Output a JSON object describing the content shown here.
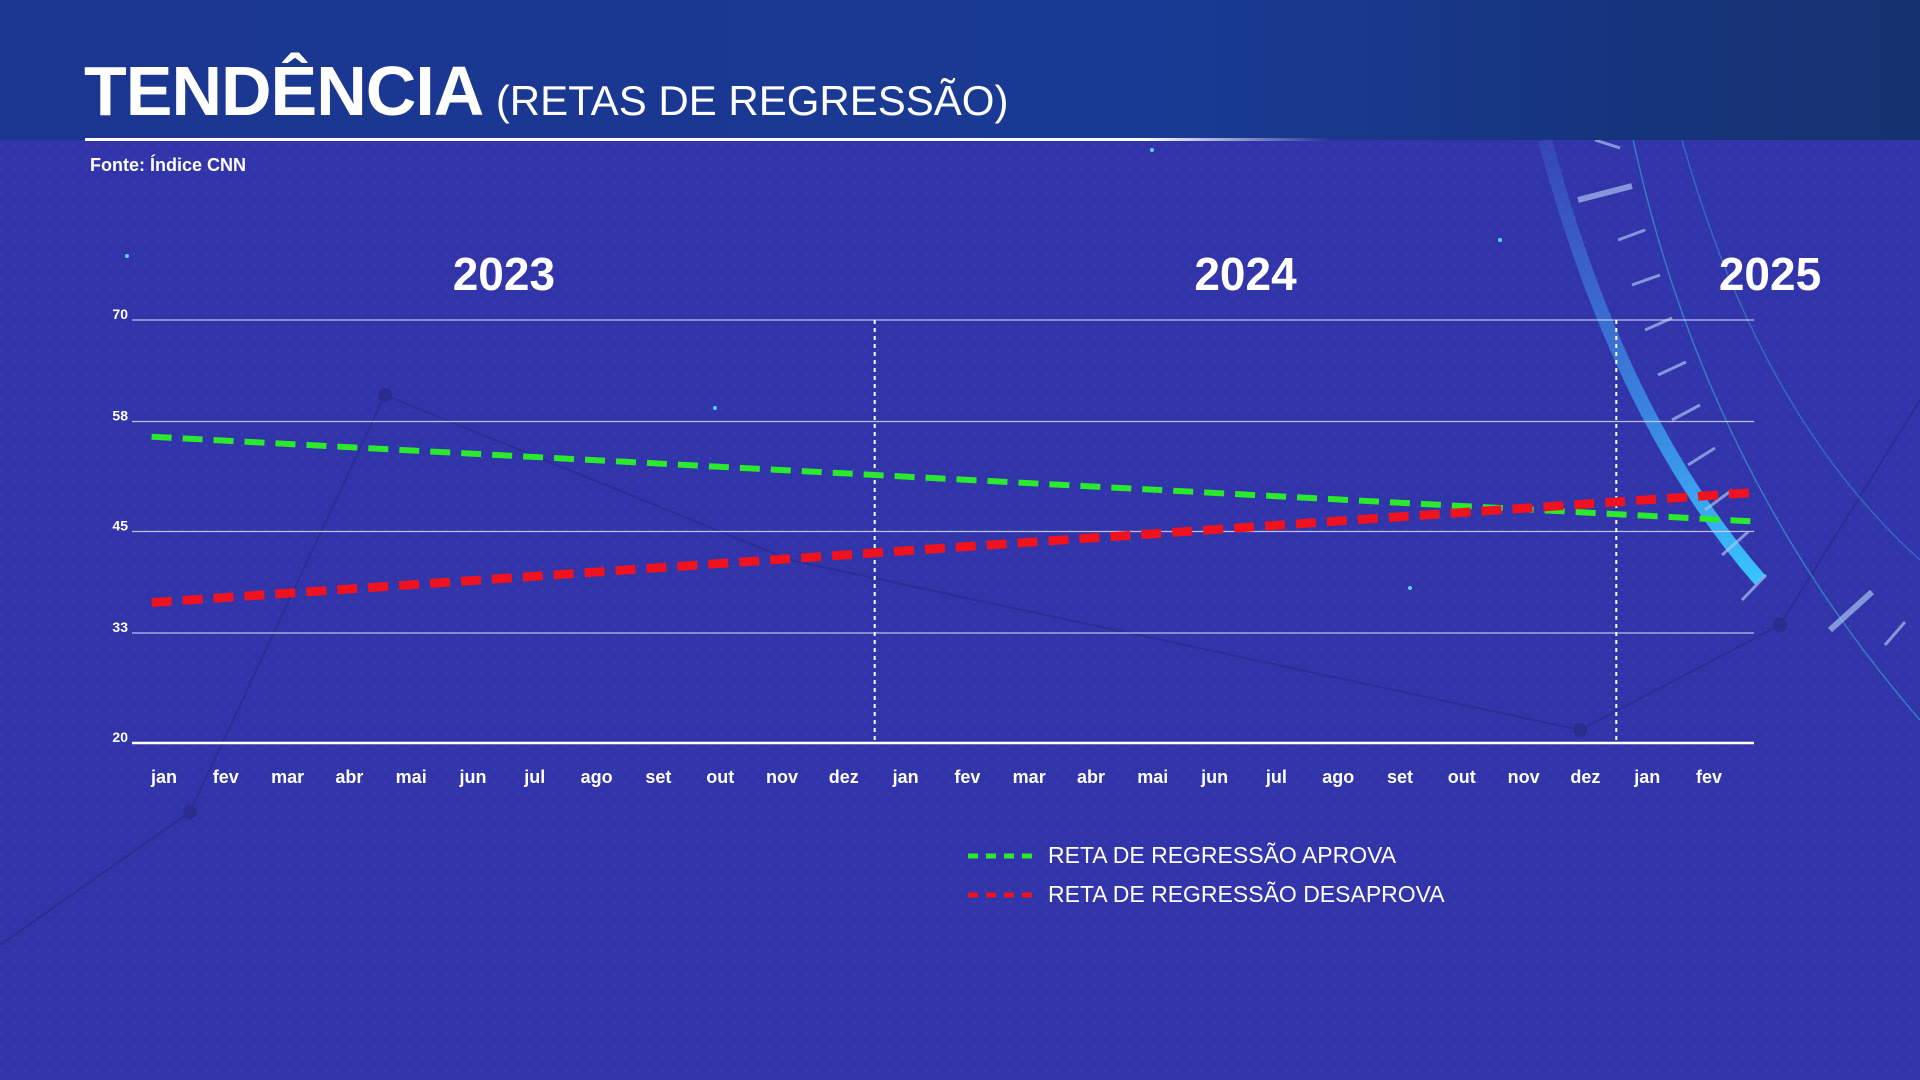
{
  "header": {
    "title": "TENDÊNCIA",
    "subtitle": "(RETAS DE REGRESSÃO)",
    "source": "Fonte: Índice CNN"
  },
  "colors": {
    "approve": "#2bea2b",
    "disapprove": "#f0121f",
    "gridline": "#d6d8f5",
    "background": "#3234a9",
    "header": "#1b3690"
  },
  "chart_data": {
    "type": "line",
    "title": "TENDÊNCIA (RETAS DE REGRESSÃO)",
    "years": [
      {
        "label": "2023",
        "first_month_index": 0,
        "last_month_index": 11
      },
      {
        "label": "2024",
        "first_month_index": 12,
        "last_month_index": 23
      },
      {
        "label": "2025",
        "first_month_index": 24,
        "last_month_index": 25
      }
    ],
    "categories": [
      "jan",
      "fev",
      "mar",
      "abr",
      "mai",
      "jun",
      "jul",
      "ago",
      "set",
      "out",
      "nov",
      "dez",
      "jan",
      "fev",
      "mar",
      "abr",
      "mai",
      "jun",
      "jul",
      "ago",
      "set",
      "out",
      "nov",
      "dez",
      "jan",
      "fev"
    ],
    "y_ticks": [
      20,
      33,
      45,
      58,
      70
    ],
    "ylim": [
      20,
      70
    ],
    "grid": true,
    "year_dividers_after_month_index": [
      11,
      23
    ],
    "series": [
      {
        "name": "RETA DE REGRESSÃO APROVA",
        "color": "#2bea2b",
        "style": "dashed",
        "start": {
          "month_index": -0.2,
          "value": 56.2
        },
        "end": {
          "month_index": 25.7,
          "value": 46.2
        }
      },
      {
        "name": "RETA DE REGRESSÃO DESAPROVA",
        "color": "#f0121f",
        "style": "dashed",
        "start": {
          "month_index": -0.2,
          "value": 36.6
        },
        "end": {
          "month_index": 25.7,
          "value": 49.6
        }
      }
    ],
    "legend": "bottom-center"
  }
}
